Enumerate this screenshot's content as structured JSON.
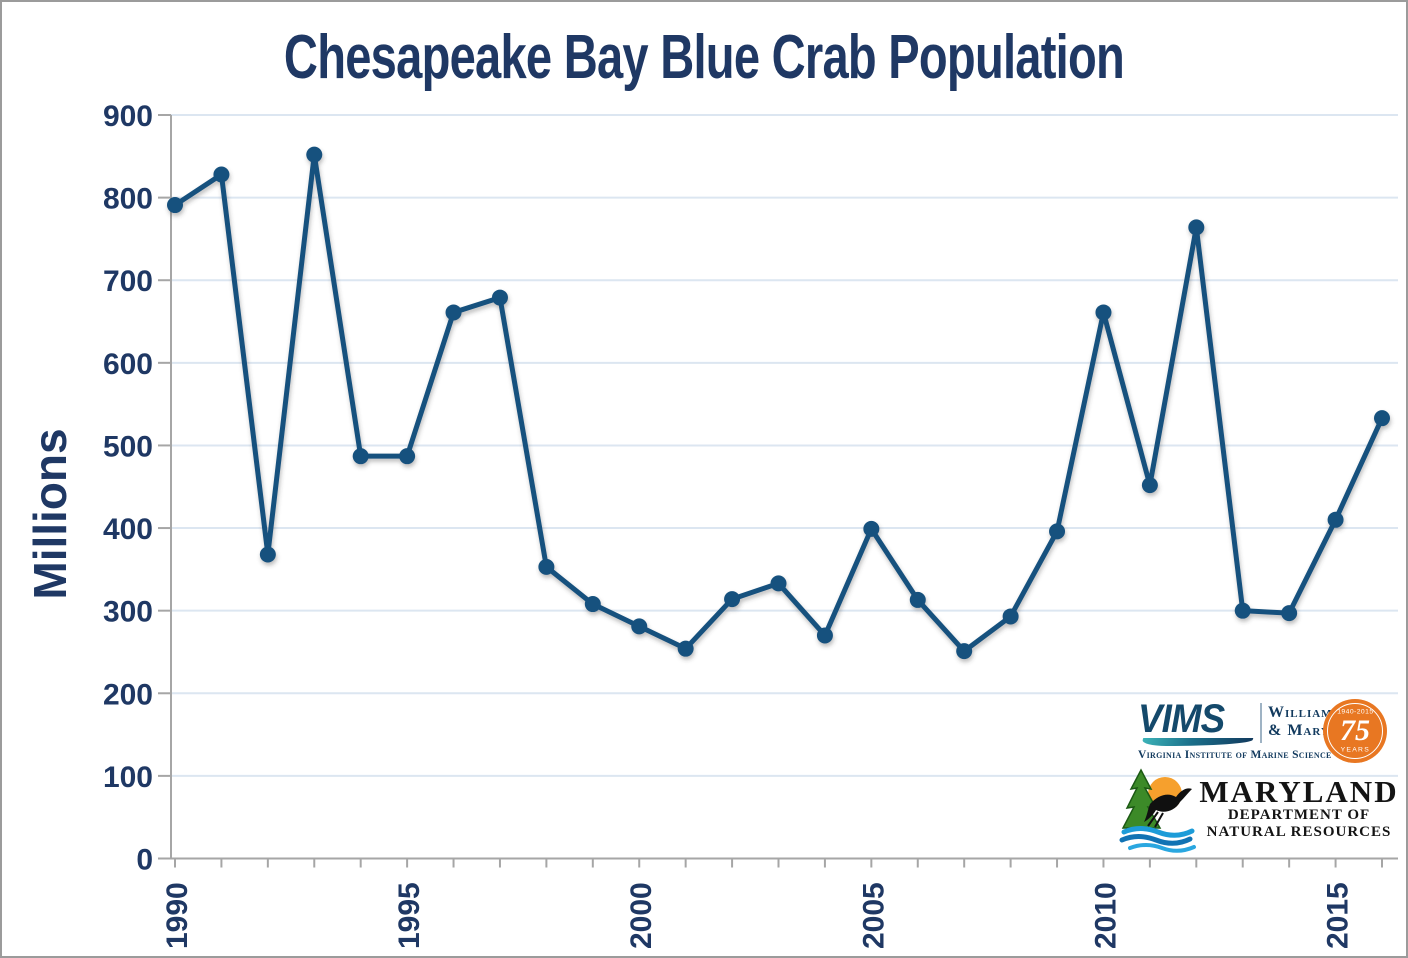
{
  "page": {
    "title": "Chesapeake Bay Blue Crab Population",
    "y_axis_title": "Millions"
  },
  "chart_data": {
    "type": "line",
    "title": "Chesapeake Bay Blue Crab Population",
    "xlabel": "",
    "ylabel": "Millions",
    "x": [
      1990,
      1991,
      1992,
      1993,
      1994,
      1995,
      1996,
      1997,
      1998,
      1999,
      2000,
      2001,
      2002,
      2003,
      2004,
      2005,
      2006,
      2007,
      2008,
      2009,
      2010,
      2011,
      2012,
      2013,
      2014,
      2015,
      2016
    ],
    "values": [
      791,
      828,
      368,
      852,
      487,
      487,
      661,
      679,
      353,
      308,
      281,
      254,
      314,
      333,
      270,
      399,
      313,
      251,
      293,
      396,
      661,
      452,
      764,
      300,
      297,
      410,
      533
    ],
    "ylim": [
      0,
      900
    ],
    "ytick_interval": 100,
    "ytick_labels": [
      "0",
      "100",
      "200",
      "300",
      "400",
      "500",
      "600",
      "700",
      "800",
      "900"
    ],
    "xtick_labels": [
      "1990",
      "1995",
      "2000",
      "2005",
      "2010",
      "2015"
    ],
    "xtick_label_years": [
      1990,
      1995,
      2000,
      2005,
      2010,
      2015
    ],
    "grid": "horizontal",
    "legend": "none",
    "colors": {
      "line": "#15517E",
      "marker": "#15517E",
      "grid": "#DCE6F1",
      "axis": "#A6A6A6",
      "tick_text": "#1F3864",
      "title_text": "#1F3864"
    }
  },
  "logos": {
    "vims": {
      "acronym": "VIMS",
      "college_line1": "William",
      "college_line2": "& Mary",
      "subtitle": "Virginia Institute of Marine Science",
      "badge_top": "1940-2015",
      "badge_number": "75",
      "badge_bottom": "YEARS",
      "badge_color": "#E87722"
    },
    "mdnr": {
      "name": "MARYLAND",
      "dept_line1": "DEPARTMENT OF",
      "dept_line2": "NATURAL RESOURCES"
    }
  }
}
